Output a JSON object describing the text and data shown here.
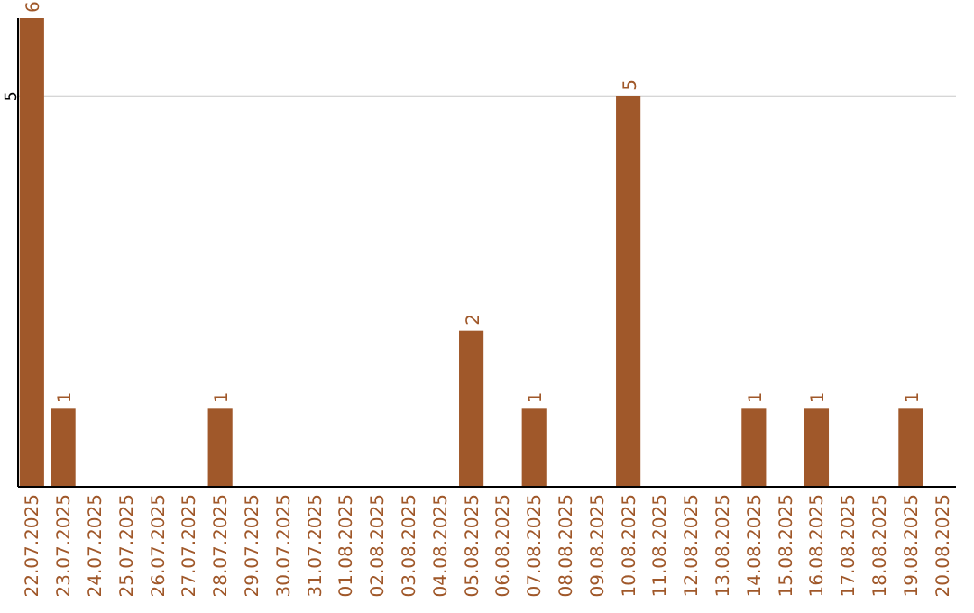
{
  "chart_data": {
    "type": "bar",
    "categories": [
      "22.07.2025",
      "23.07.2025",
      "24.07.2025",
      "25.07.2025",
      "26.07.2025",
      "27.07.2025",
      "28.07.2025",
      "29.07.2025",
      "30.07.2025",
      "31.07.2025",
      "01.08.2025",
      "02.08.2025",
      "03.08.2025",
      "04.08.2025",
      "05.08.2025",
      "06.08.2025",
      "07.08.2025",
      "08.08.2025",
      "09.08.2025",
      "10.08.2025",
      "11.08.2025",
      "12.08.2025",
      "13.08.2025",
      "14.08.2025",
      "15.08.2025",
      "16.08.2025",
      "17.08.2025",
      "18.08.2025",
      "19.08.2025",
      "20.08.2025"
    ],
    "values": [
      6,
      1,
      0,
      0,
      0,
      0,
      1,
      0,
      0,
      0,
      0,
      0,
      0,
      0,
      2,
      0,
      1,
      0,
      0,
      5,
      0,
      0,
      0,
      1,
      0,
      1,
      0,
      0,
      1,
      0
    ],
    "value_labels": [
      "6",
      "1",
      null,
      null,
      null,
      null,
      "1",
      null,
      null,
      null,
      null,
      null,
      null,
      null,
      "2",
      null,
      "1",
      null,
      null,
      "5",
      null,
      null,
      null,
      "1",
      null,
      "1",
      null,
      null,
      "1",
      null
    ],
    "color": "#a0582a",
    "ylim": [
      0,
      6
    ],
    "yticks": [
      5
    ],
    "grid": "y"
  }
}
